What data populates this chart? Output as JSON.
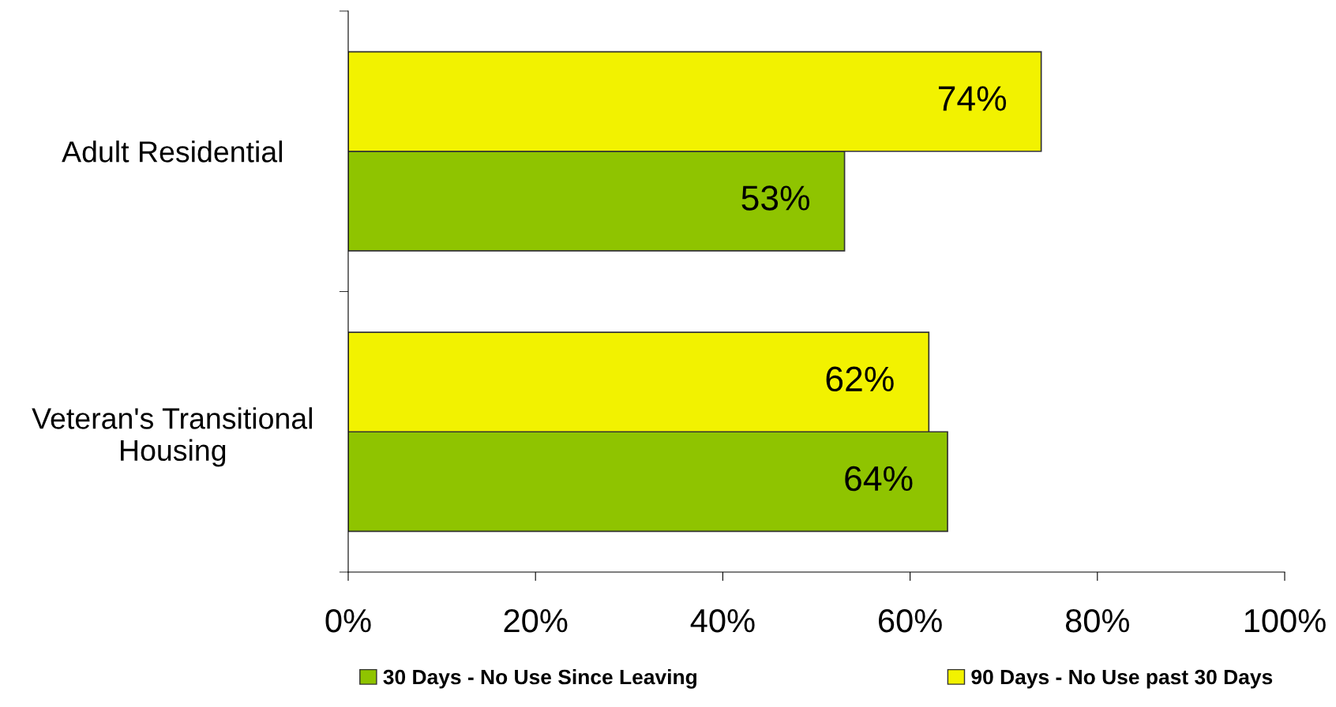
{
  "chart_data": {
    "type": "bar",
    "orientation": "horizontal",
    "categories": [
      "Adult Residential",
      "Veteran's Transitional\nHousing"
    ],
    "series": [
      {
        "name": "30 Days - No Use Since Leaving",
        "color": "#8fc400",
        "values": [
          53,
          64
        ],
        "value_labels": [
          "53%",
          "64%"
        ]
      },
      {
        "name": "90 Days - No Use past 30 Days",
        "color": "#f2f200",
        "values": [
          74,
          62
        ],
        "value_labels": [
          "74%",
          "62%"
        ]
      }
    ],
    "xlim": [
      0,
      100
    ],
    "xticks": [
      {
        "value": 0,
        "label": "0%"
      },
      {
        "value": 20,
        "label": "20%"
      },
      {
        "value": 40,
        "label": "40%"
      },
      {
        "value": 60,
        "label": "60%"
      },
      {
        "value": 80,
        "label": "80%"
      },
      {
        "value": 100,
        "label": "100%"
      }
    ],
    "grid": false,
    "legend": "bottom"
  }
}
